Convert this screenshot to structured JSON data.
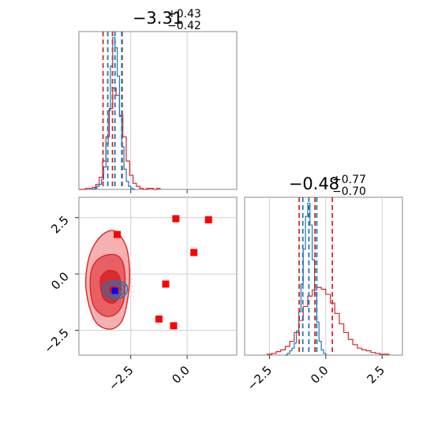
{
  "chart_data": [
    {
      "type": "histogram",
      "panel": "top-left",
      "title": {
        "main": "−3.31",
        "sup": "+0.43",
        "sub": "−0.42"
      },
      "xlim": [
        -4.8,
        2.2
      ],
      "grid": true,
      "series": [
        {
          "name": "",
          "color": "#d62728",
          "bin_edges": [
            -4.8,
            -4.65,
            -4.5,
            -4.35,
            -4.2,
            -4.05,
            -3.9,
            -3.75,
            -3.6,
            -3.45,
            -3.3,
            -3.15,
            -3.0,
            -2.85,
            -2.7,
            -2.55,
            -2.4,
            -2.25,
            -2.1,
            -1.95,
            -1.8,
            -1.65,
            -1.5,
            -1.35,
            -1.2
          ],
          "counts": [
            0,
            0,
            1,
            1,
            2,
            5,
            12,
            28,
            52,
            80,
            100,
            93,
            73,
            52,
            28,
            14,
            6,
            3,
            1,
            0,
            1,
            1,
            0,
            1
          ],
          "quantile_lines": [
            -3.73,
            -3.31,
            -2.88
          ]
        },
        {
          "name": "",
          "color": "#1f77b4",
          "bin_edges": [
            -4.2,
            -4.1,
            -4.0,
            -3.9,
            -3.8,
            -3.7,
            -3.6,
            -3.5,
            -3.4,
            -3.3,
            -3.2,
            -3.1,
            -3.0,
            -2.9,
            -2.8,
            -2.7,
            -2.6,
            -2.5,
            -2.4,
            -2.3
          ],
          "counts": [
            0,
            1,
            3,
            5,
            10,
            22,
            45,
            78,
            122,
            150,
            140,
            112,
            72,
            42,
            20,
            8,
            3,
            1,
            0
          ],
          "quantile_lines": [
            -3.52,
            -3.2,
            -2.9
          ]
        }
      ]
    },
    {
      "type": "histogram",
      "panel": "bottom-right",
      "title": {
        "main": "−0.48",
        "sup": "+0.77",
        "sub": "−0.70"
      },
      "xlim": [
        -3.6,
        3.4
      ],
      "xticks": [
        "−2.5",
        "0.0",
        "2.5"
      ],
      "xtick_values": [
        -2.5,
        0.0,
        2.5
      ],
      "grid": true,
      "series": [
        {
          "name": "",
          "color": "#d62728",
          "bin_edges": [
            -2.6,
            -2.4,
            -2.2,
            -2.0,
            -1.8,
            -1.6,
            -1.4,
            -1.2,
            -1.0,
            -0.8,
            -0.6,
            -0.4,
            -0.2,
            0.0,
            0.2,
            0.4,
            0.6,
            0.8,
            1.0,
            1.2,
            1.4,
            1.6,
            1.8,
            2.0,
            2.2,
            2.4,
            2.6,
            2.8
          ],
          "counts": [
            1,
            2,
            4,
            6,
            10,
            16,
            26,
            40,
            56,
            68,
            75,
            78,
            76,
            70,
            60,
            48,
            36,
            26,
            18,
            12,
            8,
            6,
            5,
            3,
            2,
            1,
            1
          ],
          "quantile_lines": [
            -1.18,
            -0.48,
            0.29
          ]
        },
        {
          "name": "",
          "color": "#1f77b4",
          "bin_edges": [
            -1.8,
            -1.7,
            -1.6,
            -1.5,
            -1.4,
            -1.3,
            -1.2,
            -1.1,
            -1.0,
            -0.9,
            -0.8,
            -0.7,
            -0.6,
            -0.5,
            -0.4,
            -0.3,
            -0.2,
            -0.1,
            0.0
          ],
          "counts": [
            0,
            2,
            5,
            8,
            14,
            28,
            50,
            82,
            122,
            160,
            175,
            150,
            110,
            70,
            38,
            16,
            6,
            2
          ],
          "quantile_lines": [
            -1.02,
            -0.75,
            -0.4
          ]
        }
      ]
    },
    {
      "type": "scatter",
      "panel": "bottom-left",
      "xlim": [
        -4.8,
        2.2
      ],
      "ylim": [
        -3.6,
        3.4
      ],
      "xticks": [
        "−2.5",
        "0.0"
      ],
      "xtick_values": [
        -2.5,
        0.0
      ],
      "yticks": [
        "−2.5",
        "0.0",
        "2.5"
      ],
      "ytick_values": [
        -2.5,
        0.0,
        2.5
      ],
      "grid": true,
      "contour_levels": [
        {
          "color": "#e35a5c",
          "points": [
            [
              -4.5,
              -0.3
            ],
            [
              -4.35,
              -1.4
            ],
            [
              -4.0,
              -2.2
            ],
            [
              -3.4,
              -2.45
            ],
            [
              -2.9,
              -2.1
            ],
            [
              -2.65,
              -1.2
            ],
            [
              -2.55,
              0.0
            ],
            [
              -2.7,
              1.2
            ],
            [
              -3.2,
              1.9
            ],
            [
              -3.8,
              1.7
            ],
            [
              -4.3,
              0.9
            ]
          ]
        },
        {
          "color": "#d62728",
          "points": [
            [
              -4.3,
              -0.5
            ],
            [
              -4.15,
              -1.4
            ],
            [
              -3.7,
              -1.85
            ],
            [
              -3.2,
              -1.8
            ],
            [
              -2.85,
              -1.3
            ],
            [
              -2.75,
              -0.4
            ],
            [
              -2.85,
              0.5
            ],
            [
              -3.2,
              0.85
            ],
            [
              -3.8,
              0.75
            ],
            [
              -4.2,
              0.3
            ]
          ]
        },
        {
          "color": "#d62728",
          "points": [
            [
              -3.85,
              -0.5
            ],
            [
              -3.7,
              -1.1
            ],
            [
              -3.3,
              -1.3
            ],
            [
              -3.0,
              -1.0
            ],
            [
              -2.95,
              -0.4
            ],
            [
              -3.1,
              0.05
            ],
            [
              -3.5,
              0.15
            ],
            [
              -3.8,
              -0.1
            ]
          ]
        }
      ],
      "points_red": [
        [
          -0.5,
          2.45
        ],
        [
          0.95,
          2.4
        ],
        [
          -3.1,
          1.75
        ],
        [
          0.3,
          0.95
        ],
        [
          -0.95,
          -0.45
        ],
        [
          -1.25,
          -2.0
        ],
        [
          -0.6,
          -2.3
        ]
      ],
      "points_blue": [
        [
          -3.2,
          -0.75
        ]
      ],
      "points_red_small": [
        [
          -3.3,
          -0.7
        ]
      ]
    }
  ]
}
